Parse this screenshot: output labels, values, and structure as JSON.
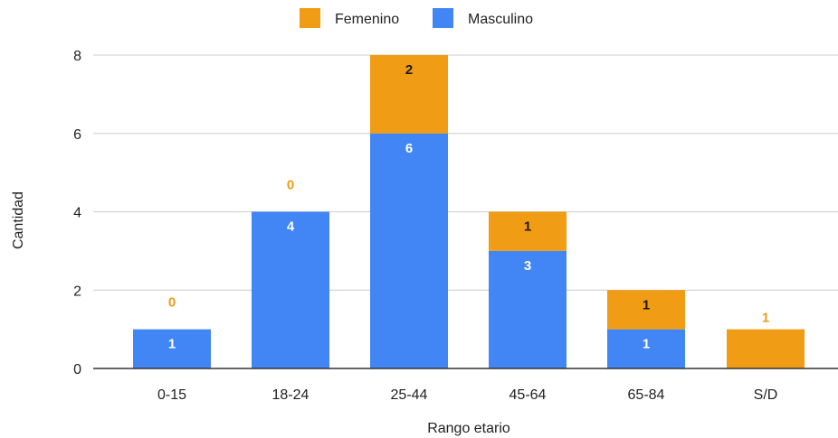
{
  "chart_data": {
    "type": "bar",
    "stacked": true,
    "categories": [
      "0-15",
      "18-24",
      "25-44",
      "45-64",
      "65-84",
      "S/D"
    ],
    "series": [
      {
        "name": "Masculino",
        "color": "#4285f4",
        "values": [
          1,
          4,
          6,
          3,
          1,
          0
        ]
      },
      {
        "name": "Femenino",
        "color": "#f09c14",
        "values": [
          0,
          0,
          2,
          1,
          1,
          1
        ]
      }
    ],
    "legend_order": [
      "Femenino",
      "Masculino"
    ],
    "legend_position": "top",
    "xlabel": "Rango etario",
    "ylabel": "Cantidad",
    "ylim": [
      0,
      8
    ],
    "yticks": [
      0,
      2,
      4,
      6,
      8
    ],
    "grid": true
  }
}
